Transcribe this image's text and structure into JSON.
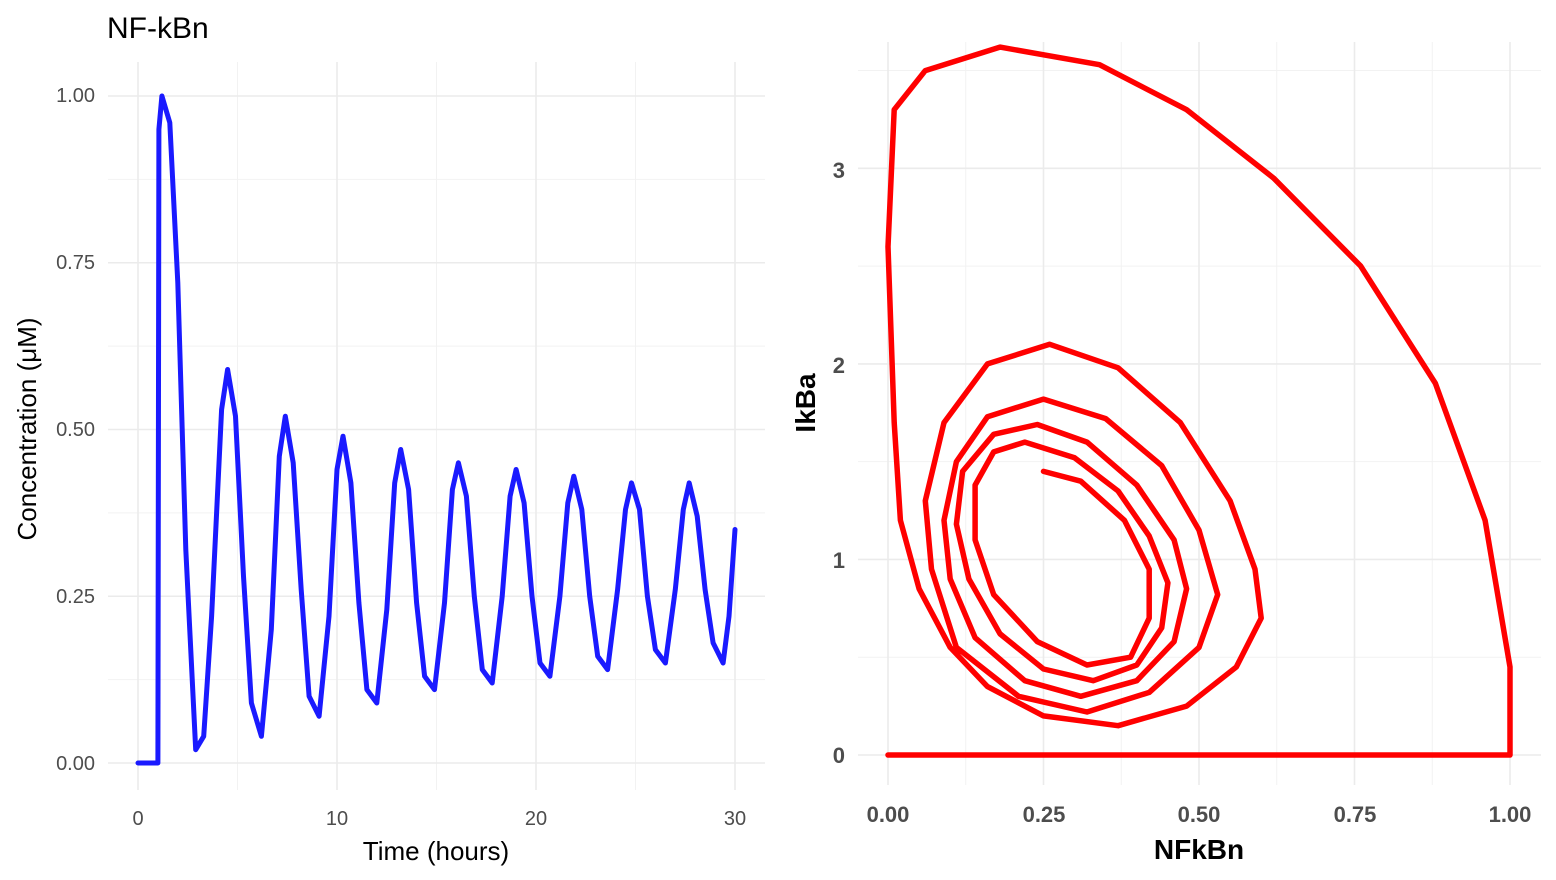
{
  "chart_data": [
    {
      "type": "line",
      "title": "NF-kBn",
      "xlabel": "Time (hours)",
      "ylabel": "Concentration (μM)",
      "xlim": [
        0,
        30
      ],
      "ylim": [
        0,
        1
      ],
      "xticks": [
        "0",
        "10",
        "20",
        "30"
      ],
      "yticks": [
        "0.00",
        "0.25",
        "0.50",
        "0.75",
        "1.00"
      ],
      "grid": true,
      "line_color": "#1a1aff",
      "series": [
        {
          "x": [
            0,
            1.0,
            1.05,
            1.2,
            1.6,
            2.0,
            2.4,
            2.9,
            3.3,
            3.7,
            4.2,
            4.5,
            4.9,
            5.3,
            5.7,
            6.2,
            6.7,
            7.1,
            7.4,
            7.8,
            8.2,
            8.6,
            9.1,
            9.6,
            10.0,
            10.3,
            10.7,
            11.1,
            11.5,
            12.0,
            12.5,
            12.9,
            13.2,
            13.6,
            14.0,
            14.4,
            14.9,
            15.4,
            15.8,
            16.1,
            16.5,
            16.9,
            17.3,
            17.8,
            18.3,
            18.7,
            19.0,
            19.4,
            19.8,
            20.2,
            20.7,
            21.2,
            21.6,
            21.9,
            22.3,
            22.7,
            23.1,
            23.6,
            24.1,
            24.5,
            24.8,
            25.2,
            25.6,
            26.0,
            26.5,
            27.0,
            27.4,
            27.7,
            28.1,
            28.5,
            28.9,
            29.4,
            29.7,
            30.0
          ],
          "y": [
            0,
            0,
            0.95,
            1.0,
            0.96,
            0.72,
            0.32,
            0.02,
            0.04,
            0.22,
            0.53,
            0.59,
            0.52,
            0.28,
            0.09,
            0.04,
            0.2,
            0.46,
            0.52,
            0.45,
            0.26,
            0.1,
            0.07,
            0.22,
            0.44,
            0.49,
            0.42,
            0.24,
            0.11,
            0.09,
            0.23,
            0.42,
            0.47,
            0.41,
            0.24,
            0.13,
            0.11,
            0.24,
            0.41,
            0.45,
            0.4,
            0.25,
            0.14,
            0.12,
            0.25,
            0.4,
            0.44,
            0.39,
            0.25,
            0.15,
            0.13,
            0.25,
            0.39,
            0.43,
            0.38,
            0.25,
            0.16,
            0.14,
            0.26,
            0.38,
            0.42,
            0.38,
            0.25,
            0.17,
            0.15,
            0.26,
            0.38,
            0.42,
            0.37,
            0.26,
            0.18,
            0.15,
            0.22,
            0.35
          ]
        }
      ]
    },
    {
      "type": "line",
      "title": "",
      "xlabel": "NFkBn",
      "ylabel": "IkBa",
      "xlim": [
        0,
        1
      ],
      "ylim": [
        0,
        3.6
      ],
      "xticks": [
        "0.00",
        "0.25",
        "0.50",
        "0.75",
        "1.00"
      ],
      "yticks": [
        "0",
        "1",
        "2",
        "3"
      ],
      "grid": true,
      "line_color": "#ff0000",
      "series": [
        {
          "x": [
            0.0,
            1.0,
            1.0,
            1.0,
            0.96,
            0.88,
            0.76,
            0.62,
            0.48,
            0.34,
            0.18,
            0.06,
            0.01,
            0.0,
            0.01,
            0.02,
            0.05,
            0.1,
            0.16,
            0.25,
            0.37,
            0.48,
            0.56,
            0.6,
            0.59,
            0.55,
            0.47,
            0.37,
            0.26,
            0.16,
            0.09,
            0.06,
            0.07,
            0.11,
            0.21,
            0.32,
            0.42,
            0.5,
            0.53,
            0.5,
            0.44,
            0.35,
            0.25,
            0.16,
            0.11,
            0.09,
            0.1,
            0.14,
            0.22,
            0.31,
            0.4,
            0.46,
            0.48,
            0.46,
            0.4,
            0.32,
            0.24,
            0.17,
            0.12,
            0.11,
            0.13,
            0.18,
            0.25,
            0.33,
            0.4,
            0.44,
            0.45,
            0.42,
            0.37,
            0.3,
            0.22,
            0.17,
            0.14,
            0.14,
            0.17,
            0.24,
            0.32,
            0.39,
            0.42,
            0.42,
            0.38,
            0.31,
            0.25
          ],
          "y": [
            0.0,
            0.0,
            0.03,
            0.45,
            1.2,
            1.9,
            2.5,
            2.95,
            3.3,
            3.53,
            3.62,
            3.5,
            3.3,
            2.6,
            1.7,
            1.2,
            0.85,
            0.55,
            0.35,
            0.2,
            0.15,
            0.25,
            0.45,
            0.7,
            0.95,
            1.3,
            1.7,
            1.98,
            2.1,
            2.0,
            1.7,
            1.3,
            0.95,
            0.55,
            0.3,
            0.22,
            0.32,
            0.55,
            0.82,
            1.15,
            1.48,
            1.72,
            1.82,
            1.73,
            1.5,
            1.2,
            0.9,
            0.6,
            0.38,
            0.3,
            0.38,
            0.58,
            0.85,
            1.1,
            1.38,
            1.6,
            1.69,
            1.64,
            1.45,
            1.18,
            0.9,
            0.62,
            0.44,
            0.38,
            0.46,
            0.65,
            0.88,
            1.12,
            1.35,
            1.52,
            1.6,
            1.55,
            1.38,
            1.1,
            0.82,
            0.58,
            0.46,
            0.5,
            0.7,
            0.95,
            1.2,
            1.4,
            1.45
          ]
        }
      ]
    }
  ]
}
